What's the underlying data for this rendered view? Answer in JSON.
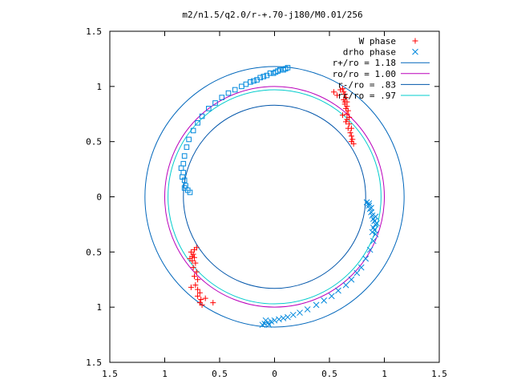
{
  "chart_data": {
    "type": "scatter",
    "title": "m2/n1.5/q2.0/r-+.70-j180/M0.01/256",
    "xlabel": "",
    "ylabel": "",
    "xlim": [
      -1.5,
      1.5
    ],
    "ylim": [
      -1.5,
      1.5
    ],
    "x_ticks": [
      -1.5,
      -1,
      -0.5,
      0,
      0.5,
      1,
      1.5
    ],
    "y_ticks": [
      -1.5,
      -1,
      -0.5,
      0,
      0.5,
      1,
      1.5
    ],
    "x_tick_labels": [
      "1.5",
      "1",
      "0.5",
      "0",
      "0.5",
      "1",
      "1.5"
    ],
    "y_tick_labels": [
      "1.5",
      "1",
      "0.5",
      "0",
      "0.5",
      "1",
      "1.5"
    ],
    "grid": false,
    "legend_position": "top-right",
    "colors": {
      "w_phase": "#ff0000",
      "drho_phase": "#0088dd",
      "r_plus": "#0066bb",
      "ro": "#bb00bb",
      "r_minus": "#0055aa",
      "rc": "#00cccc"
    },
    "circles": [
      {
        "key": "r_plus",
        "name": "r+/ro = 1.18",
        "radius": 1.18
      },
      {
        "key": "ro",
        "name": "ro/ro = 1.00",
        "radius": 1.0
      },
      {
        "key": "r_minus",
        "name": "r-/ro = .83",
        "radius": 0.83
      },
      {
        "key": "rc",
        "name": "rc/ro = .97",
        "radius": 0.97
      }
    ],
    "series": [
      {
        "key": "w_phase",
        "name": "W phase",
        "marker": "plus",
        "points": [
          [
            0.62,
            0.98
          ],
          [
            0.63,
            0.95
          ],
          [
            0.64,
            0.93
          ],
          [
            0.65,
            0.9
          ],
          [
            0.63,
            0.88
          ],
          [
            0.66,
            0.86
          ],
          [
            0.64,
            0.84
          ],
          [
            0.66,
            0.82
          ],
          [
            0.65,
            0.8
          ],
          [
            0.67,
            0.78
          ],
          [
            0.66,
            0.75
          ],
          [
            0.68,
            0.72
          ],
          [
            0.66,
            0.7
          ],
          [
            0.68,
            0.66
          ],
          [
            0.7,
            0.62
          ],
          [
            0.69,
            0.58
          ],
          [
            0.7,
            0.55
          ],
          [
            0.71,
            0.52
          ],
          [
            0.7,
            0.5
          ],
          [
            0.72,
            0.48
          ],
          [
            0.67,
            0.62
          ],
          [
            0.64,
            0.86
          ],
          [
            0.6,
            0.97
          ],
          [
            0.54,
            0.95
          ],
          [
            0.57,
            0.92
          ],
          [
            0.62,
            0.74
          ],
          [
            0.65,
            0.68
          ],
          [
            -0.76,
            -0.5
          ],
          [
            -0.74,
            -0.52
          ],
          [
            -0.73,
            -0.55
          ],
          [
            -0.75,
            -0.58
          ],
          [
            -0.72,
            -0.6
          ],
          [
            -0.74,
            -0.64
          ],
          [
            -0.71,
            -0.68
          ],
          [
            -0.73,
            -0.72
          ],
          [
            -0.7,
            -0.75
          ],
          [
            -0.72,
            -0.8
          ],
          [
            -0.7,
            -0.84
          ],
          [
            -0.68,
            -0.87
          ],
          [
            -0.7,
            -0.9
          ],
          [
            -0.67,
            -0.93
          ],
          [
            -0.68,
            -0.96
          ],
          [
            -0.66,
            -0.98
          ],
          [
            -0.76,
            -0.82
          ],
          [
            -0.75,
            -0.54
          ],
          [
            -0.73,
            -0.48
          ],
          [
            -0.63,
            -0.92
          ],
          [
            -0.56,
            -0.96
          ],
          [
            -0.77,
            -0.56
          ],
          [
            -0.71,
            -0.46
          ]
        ]
      },
      {
        "key": "drho_phase",
        "name": "drho phase",
        "marker": "cross",
        "points": [
          [
            0.84,
            -0.05
          ],
          [
            0.86,
            -0.08
          ],
          [
            0.87,
            -0.11
          ],
          [
            0.88,
            -0.14
          ],
          [
            0.89,
            -0.17
          ],
          [
            0.9,
            -0.2
          ],
          [
            0.91,
            -0.22
          ],
          [
            0.92,
            -0.25
          ],
          [
            0.88,
            -0.1
          ],
          [
            0.9,
            -0.28
          ],
          [
            0.91,
            -0.3
          ],
          [
            0.89,
            -0.32
          ],
          [
            0.92,
            -0.18
          ],
          [
            0.86,
            -0.06
          ],
          [
            0.93,
            -0.24
          ],
          [
            0.92,
            -0.34
          ],
          [
            0.9,
            -0.4
          ],
          [
            0.87,
            -0.48
          ],
          [
            0.83,
            -0.56
          ],
          [
            0.79,
            -0.64
          ],
          [
            0.75,
            -0.69
          ],
          [
            0.7,
            -0.75
          ],
          [
            0.65,
            -0.8
          ],
          [
            0.58,
            -0.85
          ],
          [
            0.52,
            -0.9
          ],
          [
            0.45,
            -0.94
          ],
          [
            0.38,
            -0.98
          ],
          [
            0.3,
            -1.02
          ],
          [
            0.23,
            -1.05
          ],
          [
            0.17,
            -1.07
          ],
          [
            0.12,
            -1.09
          ],
          [
            0.08,
            -1.1
          ],
          [
            0.04,
            -1.11
          ],
          [
            0.0,
            -1.12
          ],
          [
            -0.03,
            -1.13
          ],
          [
            -0.06,
            -1.14
          ],
          [
            -0.09,
            -1.15
          ],
          [
            -0.11,
            -1.16
          ],
          [
            -0.08,
            -1.12
          ],
          [
            -0.05,
            -1.16
          ]
        ]
      },
      {
        "key": "drho_phase",
        "name": "",
        "marker": "square",
        "points": [
          [
            0.12,
            1.17
          ],
          [
            0.1,
            1.16
          ],
          [
            0.08,
            1.15
          ],
          [
            0.05,
            1.15
          ],
          [
            0.03,
            1.14
          ],
          [
            0.01,
            1.13
          ],
          [
            -0.01,
            1.12
          ],
          [
            -0.04,
            1.12
          ],
          [
            -0.07,
            1.1
          ],
          [
            -0.1,
            1.09
          ],
          [
            -0.13,
            1.08
          ],
          [
            -0.16,
            1.06
          ],
          [
            -0.19,
            1.05
          ],
          [
            -0.22,
            1.04
          ],
          [
            -0.26,
            1.02
          ],
          [
            -0.3,
            1.0
          ],
          [
            -0.36,
            0.97
          ],
          [
            -0.42,
            0.94
          ],
          [
            -0.48,
            0.9
          ],
          [
            -0.54,
            0.85
          ],
          [
            -0.6,
            0.8
          ],
          [
            -0.66,
            0.73
          ],
          [
            -0.7,
            0.67
          ],
          [
            -0.74,
            0.6
          ],
          [
            -0.78,
            0.52
          ],
          [
            -0.8,
            0.45
          ],
          [
            -0.82,
            0.37
          ],
          [
            -0.83,
            0.3
          ],
          [
            -0.83,
            0.22
          ],
          [
            -0.82,
            0.15
          ],
          [
            -0.81,
            0.1
          ],
          [
            -0.79,
            0.06
          ],
          [
            -0.77,
            0.04
          ],
          [
            -0.85,
            0.26
          ],
          [
            -0.84,
            0.18
          ],
          [
            -0.82,
            0.08
          ]
        ]
      }
    ]
  }
}
